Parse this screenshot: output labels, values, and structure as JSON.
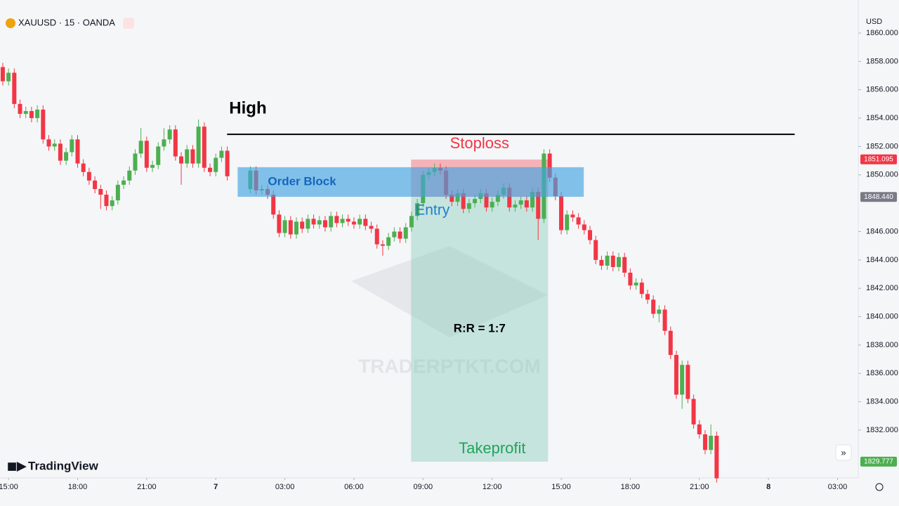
{
  "chart_data": {
    "type": "candlestick",
    "header": "XAUUSD · 15 · OANDA",
    "currency": "USD",
    "brand": "TradingView",
    "watermark": "TRADERPTKT.COM",
    "up_color": "#4caf50",
    "down_color": "#f23645",
    "grid": false,
    "xlim": [
      14.63,
      51.9
    ],
    "xticks": [
      {
        "value": 15,
        "label": "15:00"
      },
      {
        "value": 18,
        "label": "18:00"
      },
      {
        "value": 21,
        "label": "21:00"
      },
      {
        "value": 24,
        "label": "7"
      },
      {
        "value": 27,
        "label": "03:00"
      },
      {
        "value": 30,
        "label": "06:00"
      },
      {
        "value": 33,
        "label": "09:00"
      },
      {
        "value": 36,
        "label": "12:00"
      },
      {
        "value": 39,
        "label": "15:00"
      },
      {
        "value": 42,
        "label": "18:00"
      },
      {
        "value": 45,
        "label": "21:00"
      },
      {
        "value": 48,
        "label": "8"
      },
      {
        "value": 51,
        "label": "03:00"
      }
    ],
    "ylim": [
      1828.63,
      1862.33
    ],
    "yticks": [
      {
        "value": 1832,
        "label": "1832.000"
      },
      {
        "value": 1834,
        "label": "1834.000"
      },
      {
        "value": 1836,
        "label": "1836.000"
      },
      {
        "value": 1838,
        "label": "1838.000"
      },
      {
        "value": 1840,
        "label": "1840.000"
      },
      {
        "value": 1842,
        "label": "1842.000"
      },
      {
        "value": 1844,
        "label": "1844.000"
      },
      {
        "value": 1846,
        "label": "1846.000"
      },
      {
        "value": 1850,
        "label": "1850.000"
      },
      {
        "value": 1852,
        "label": "1852.000"
      },
      {
        "value": 1854,
        "label": "1854.000"
      },
      {
        "value": 1856,
        "label": "1856.000"
      },
      {
        "value": 1858,
        "label": "1858.000"
      },
      {
        "value": 1860,
        "label": "1860.000"
      }
    ],
    "x": [
      14.75,
      15,
      15.25,
      15.5,
      15.75,
      16,
      16.25,
      16.5,
      16.75,
      17,
      17.25,
      17.5,
      17.75,
      18,
      18.25,
      18.5,
      18.75,
      19,
      19.25,
      19.5,
      19.75,
      20,
      20.25,
      20.5,
      20.75,
      21,
      21.25,
      21.5,
      21.75,
      22,
      22.25,
      22.5,
      22.75,
      23,
      23.25,
      23.5,
      23.75,
      24,
      24.25,
      24.5,
      25.5,
      25.75,
      26,
      26.25,
      26.5,
      26.75,
      27,
      27.25,
      27.5,
      27.75,
      28,
      28.25,
      28.5,
      28.75,
      29,
      29.25,
      29.5,
      29.75,
      30,
      30.25,
      30.5,
      30.75,
      31,
      31.25,
      31.5,
      31.75,
      32,
      32.25,
      32.5,
      32.75,
      33,
      33.25,
      33.5,
      33.75,
      34,
      34.25,
      34.5,
      34.75,
      35,
      35.25,
      35.5,
      35.75,
      36,
      36.25,
      36.5,
      36.75,
      37,
      37.25,
      37.5,
      37.75,
      38,
      38.25,
      38.5,
      38.75,
      39,
      39.25,
      39.5,
      39.75,
      40,
      40.25,
      40.5,
      40.75,
      41,
      41.25,
      41.5,
      41.75,
      42,
      42.25,
      42.5,
      42.75,
      43,
      43.25,
      43.5,
      43.75,
      44,
      44.25,
      44.5,
      44.75,
      45,
      45.25,
      45.5,
      45.75
    ],
    "ohlc": [
      [
        1857.6,
        1857.9,
        1856.3,
        1856.6
      ],
      [
        1856.6,
        1857.5,
        1856.3,
        1857.2
      ],
      [
        1857.2,
        1857.5,
        1854.7,
        1855.0
      ],
      [
        1855.0,
        1855.3,
        1854.0,
        1854.3
      ],
      [
        1854.3,
        1854.8,
        1854.0,
        1854.5
      ],
      [
        1854.5,
        1854.8,
        1853.7,
        1854.0
      ],
      [
        1854.0,
        1854.9,
        1853.7,
        1854.6
      ],
      [
        1854.6,
        1854.9,
        1852.2,
        1852.5
      ],
      [
        1852.5,
        1852.8,
        1851.7,
        1852.0
      ],
      [
        1852.0,
        1852.5,
        1851.7,
        1852.2
      ],
      [
        1852.2,
        1852.5,
        1850.7,
        1851.0
      ],
      [
        1851.0,
        1851.9,
        1850.7,
        1851.6
      ],
      [
        1851.6,
        1852.8,
        1851.3,
        1852.5
      ],
      [
        1852.5,
        1852.8,
        1850.5,
        1850.8
      ],
      [
        1850.8,
        1851.1,
        1849.9,
        1850.2
      ],
      [
        1850.2,
        1850.5,
        1849.3,
        1849.6
      ],
      [
        1849.6,
        1849.9,
        1848.7,
        1849.0
      ],
      [
        1849.0,
        1849.3,
        1847.6,
        1848.6
      ],
      [
        1848.6,
        1848.9,
        1847.5,
        1847.8
      ],
      [
        1847.8,
        1848.5,
        1847.5,
        1848.2
      ],
      [
        1848.2,
        1849.6,
        1847.9,
        1849.3
      ],
      [
        1849.3,
        1849.9,
        1849.0,
        1849.6
      ],
      [
        1849.6,
        1850.6,
        1849.3,
        1850.3
      ],
      [
        1850.3,
        1851.8,
        1850.0,
        1851.5
      ],
      [
        1851.5,
        1853.3,
        1851.2,
        1852.4
      ],
      [
        1852.4,
        1852.7,
        1850.2,
        1850.5
      ],
      [
        1850.5,
        1851.0,
        1850.2,
        1850.7
      ],
      [
        1850.7,
        1852.3,
        1850.4,
        1852.0
      ],
      [
        1852.0,
        1853.3,
        1851.7,
        1852.5
      ],
      [
        1852.5,
        1853.5,
        1852.2,
        1853.2
      ],
      [
        1853.2,
        1853.5,
        1851.0,
        1851.3
      ],
      [
        1851.3,
        1851.6,
        1849.3,
        1850.8
      ],
      [
        1850.8,
        1852.1,
        1850.5,
        1851.8
      ],
      [
        1851.8,
        1852.1,
        1850.5,
        1850.8
      ],
      [
        1850.8,
        1853.9,
        1850.5,
        1853.4
      ],
      [
        1853.4,
        1853.7,
        1850.2,
        1850.5
      ],
      [
        1850.5,
        1850.8,
        1849.9,
        1850.2
      ],
      [
        1850.2,
        1851.5,
        1849.9,
        1851.2
      ],
      [
        1851.2,
        1852.0,
        1850.9,
        1851.7
      ],
      [
        1851.7,
        1852.0,
        1849.6,
        1849.9
      ],
      [
        1849.0,
        1850.6,
        1848.7,
        1850.3
      ],
      [
        1850.3,
        1850.6,
        1848.6,
        1848.9
      ],
      [
        1848.9,
        1849.3,
        1848.6,
        1849.0
      ],
      [
        1849.0,
        1849.3,
        1848.3,
        1848.6
      ],
      [
        1848.6,
        1848.9,
        1846.9,
        1847.2
      ],
      [
        1847.2,
        1847.5,
        1845.6,
        1845.9
      ],
      [
        1845.9,
        1847.1,
        1845.6,
        1846.8
      ],
      [
        1846.8,
        1847.1,
        1845.5,
        1845.8
      ],
      [
        1845.8,
        1847.0,
        1845.5,
        1846.7
      ],
      [
        1846.7,
        1847.0,
        1845.9,
        1846.2
      ],
      [
        1846.2,
        1847.2,
        1845.9,
        1846.9
      ],
      [
        1846.9,
        1847.2,
        1846.2,
        1846.5
      ],
      [
        1846.5,
        1847.1,
        1846.2,
        1846.8
      ],
      [
        1846.8,
        1847.1,
        1846.0,
        1846.3
      ],
      [
        1846.3,
        1847.4,
        1846.0,
        1847.1
      ],
      [
        1847.1,
        1847.4,
        1846.3,
        1846.6
      ],
      [
        1846.6,
        1847.2,
        1846.3,
        1846.9
      ],
      [
        1846.9,
        1847.2,
        1846.4,
        1846.7
      ],
      [
        1846.7,
        1847.0,
        1846.2,
        1846.5
      ],
      [
        1846.5,
        1847.2,
        1846.2,
        1846.9
      ],
      [
        1846.9,
        1847.2,
        1846.1,
        1846.4
      ],
      [
        1846.4,
        1846.7,
        1845.9,
        1846.2
      ],
      [
        1846.2,
        1846.5,
        1844.8,
        1845.1
      ],
      [
        1845.1,
        1845.4,
        1844.3,
        1845.0
      ],
      [
        1845.0,
        1845.9,
        1844.7,
        1845.6
      ],
      [
        1845.6,
        1846.3,
        1845.3,
        1846.0
      ],
      [
        1846.0,
        1846.3,
        1845.2,
        1845.5
      ],
      [
        1845.5,
        1846.6,
        1845.2,
        1846.3
      ],
      [
        1846.3,
        1847.4,
        1846.0,
        1847.1
      ],
      [
        1847.1,
        1848.3,
        1846.8,
        1848.0
      ],
      [
        1848.0,
        1850.3,
        1847.7,
        1850.0
      ],
      [
        1850.0,
        1850.5,
        1849.7,
        1850.2
      ],
      [
        1850.2,
        1850.8,
        1849.9,
        1850.5
      ],
      [
        1850.5,
        1850.8,
        1850.0,
        1850.3
      ],
      [
        1850.3,
        1850.6,
        1848.3,
        1848.6
      ],
      [
        1848.6,
        1848.9,
        1847.8,
        1848.1
      ],
      [
        1848.1,
        1849.0,
        1847.8,
        1848.7
      ],
      [
        1848.7,
        1849.0,
        1847.3,
        1847.6
      ],
      [
        1847.6,
        1848.3,
        1847.3,
        1848.0
      ],
      [
        1848.0,
        1848.6,
        1847.7,
        1848.3
      ],
      [
        1848.3,
        1849.0,
        1848.0,
        1848.7
      ],
      [
        1848.7,
        1849.0,
        1847.4,
        1847.7
      ],
      [
        1847.7,
        1848.4,
        1847.4,
        1848.1
      ],
      [
        1848.1,
        1848.9,
        1847.8,
        1848.6
      ],
      [
        1848.6,
        1849.4,
        1848.3,
        1849.1
      ],
      [
        1849.1,
        1849.4,
        1847.4,
        1847.7
      ],
      [
        1847.7,
        1848.2,
        1847.4,
        1847.9
      ],
      [
        1847.9,
        1848.5,
        1847.6,
        1848.2
      ],
      [
        1848.2,
        1848.5,
        1847.4,
        1847.7
      ],
      [
        1847.7,
        1849.1,
        1847.4,
        1848.8
      ],
      [
        1848.8,
        1849.1,
        1845.4,
        1846.9
      ],
      [
        1846.9,
        1851.8,
        1846.6,
        1851.5
      ],
      [
        1851.5,
        1851.8,
        1849.5,
        1849.8
      ],
      [
        1849.8,
        1850.1,
        1848.2,
        1848.5
      ],
      [
        1848.5,
        1848.8,
        1845.8,
        1846.1
      ],
      [
        1846.1,
        1847.5,
        1845.8,
        1847.2
      ],
      [
        1847.2,
        1847.5,
        1846.7,
        1847.0
      ],
      [
        1847.0,
        1847.3,
        1846.2,
        1846.5
      ],
      [
        1846.5,
        1846.8,
        1845.8,
        1846.1
      ],
      [
        1846.1,
        1846.4,
        1845.1,
        1845.4
      ],
      [
        1845.4,
        1845.7,
        1843.7,
        1844.0
      ],
      [
        1844.0,
        1844.3,
        1843.3,
        1843.6
      ],
      [
        1843.6,
        1844.6,
        1843.3,
        1844.3
      ],
      [
        1844.3,
        1844.6,
        1843.2,
        1843.5
      ],
      [
        1843.5,
        1844.5,
        1843.2,
        1844.2
      ],
      [
        1844.2,
        1844.5,
        1842.8,
        1843.1
      ],
      [
        1843.1,
        1843.4,
        1841.9,
        1842.2
      ],
      [
        1842.2,
        1842.7,
        1841.9,
        1842.4
      ],
      [
        1842.4,
        1842.7,
        1841.3,
        1841.6
      ],
      [
        1841.6,
        1841.9,
        1840.9,
        1841.2
      ],
      [
        1841.2,
        1841.5,
        1839.9,
        1840.2
      ],
      [
        1840.2,
        1840.8,
        1839.6,
        1840.5
      ],
      [
        1840.5,
        1840.8,
        1838.7,
        1839.0
      ],
      [
        1839.0,
        1839.3,
        1837.0,
        1837.3
      ],
      [
        1837.3,
        1837.6,
        1834.2,
        1834.5
      ],
      [
        1834.5,
        1836.9,
        1833.5,
        1836.6
      ],
      [
        1836.6,
        1836.9,
        1833.9,
        1834.2
      ],
      [
        1834.2,
        1834.5,
        1832.1,
        1832.4
      ],
      [
        1832.4,
        1832.7,
        1831.4,
        1831.7
      ],
      [
        1831.7,
        1832.0,
        1830.3,
        1830.6
      ],
      [
        1830.6,
        1832.4,
        1830.3,
        1831.6
      ],
      [
        1831.6,
        1831.9,
        1828.3,
        1828.6
      ]
    ],
    "price_labels": [
      {
        "value": 1851.095,
        "color": "#f23645"
      },
      {
        "value": 1848.44,
        "label": "1848.440",
        "color": "#787b86"
      },
      {
        "value": 1829.777,
        "color": "#4caf50"
      }
    ],
    "annotations": {
      "high": {
        "label": "High",
        "price": 1852.86,
        "x": [
          24.49,
          49.14
        ]
      },
      "order_block": {
        "label": "Order Block",
        "top": 1850.54,
        "bottom": 1848.45,
        "x": [
          24.95,
          39.98
        ]
      },
      "stoploss": {
        "label": "Stoploss",
        "top": 1851.08,
        "bottom": 1848.45,
        "x": [
          32.48,
          38.43
        ]
      },
      "entry": {
        "label": "Entry",
        "price": 1848.45
      },
      "takeprofit": {
        "label": "Takeprofit",
        "top": 1848.45,
        "bottom": 1829.77,
        "x": [
          32.48,
          38.43
        ]
      },
      "ratio": "R:R = 1:7"
    }
  }
}
